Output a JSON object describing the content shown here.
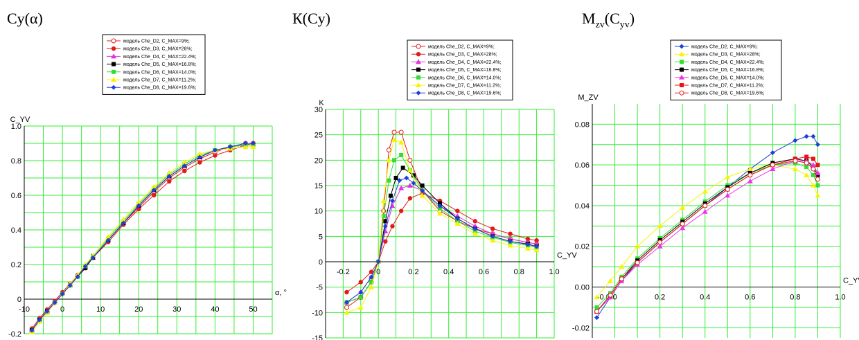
{
  "headings": {
    "chart1": "Cy(α)",
    "chart2": "К(Cy)",
    "chart3_main": "M",
    "chart3_sub1": "zv",
    "chart3_paren": "(C",
    "chart3_sub2": "yv",
    "chart3_close": ")"
  },
  "colors": {
    "grid": "#33ee33",
    "D2": "#e31a1c",
    "D3": "#e31a1c",
    "D4": "#dd33dd",
    "D5": "#000000",
    "D6": "#33dd33",
    "D7": "#f5f500",
    "D8": "#1f3fd6",
    "D2_plot3": "#1f3fd6",
    "D3_plot3": "#f5f500",
    "D4_plot3": "#33dd33",
    "D5_plot3": "#000000",
    "D6_plot3": "#ee33ee",
    "D7_plot3": "#ee1111",
    "D8_plot3": "#e31a1c"
  },
  "chart_data": [
    {
      "type": "line",
      "title": "Cy(α)",
      "ylabel": "C_YV",
      "xlabel": "α, °",
      "xlim": [
        -10,
        55
      ],
      "ylim": [
        -0.2,
        1.0
      ],
      "xticks": [
        "-10",
        "0",
        "10",
        "20",
        "30",
        "40",
        "50"
      ],
      "yticks": [
        "-0.2",
        "0",
        "0.2",
        "0.4",
        "0.6",
        "0.8",
        "1.0"
      ],
      "legend": [
        "модель Che_D2, C_MAX=9%;",
        "модель Che_D3, C_MAX=28%;",
        "модель Che_D4, C_MAX=22.4%;",
        "модель Che_D5, C_MAX=16.8%;",
        "модель Che_D6, C_MAX=14.0%;",
        "модель Che_D7, C_MAX=11.2%;",
        "модель Che_D8, C_MAX=19.6%;"
      ],
      "x": [
        -8,
        -6,
        -4,
        -2,
        0,
        2,
        4,
        6,
        8,
        12,
        16,
        20,
        24,
        28,
        32,
        36,
        40,
        44,
        48,
        50
      ],
      "series": [
        {
          "name": "D2",
          "values": [
            -0.18,
            -0.12,
            -0.07,
            -0.02,
            0.03,
            0.08,
            0.13,
            0.18,
            0.24,
            0.34,
            0.44,
            0.53,
            0.62,
            0.7,
            0.76,
            0.81,
            0.85,
            0.88,
            0.9,
            0.9
          ]
        },
        {
          "name": "D3",
          "values": [
            -0.17,
            -0.11,
            -0.06,
            -0.01,
            0.04,
            0.09,
            0.14,
            0.19,
            0.24,
            0.33,
            0.43,
            0.52,
            0.6,
            0.68,
            0.74,
            0.79,
            0.83,
            0.86,
            0.89,
            0.9
          ]
        },
        {
          "name": "D4",
          "values": [
            -0.18,
            -0.12,
            -0.07,
            -0.02,
            0.03,
            0.08,
            0.14,
            0.19,
            0.24,
            0.34,
            0.44,
            0.54,
            0.63,
            0.71,
            0.77,
            0.82,
            0.86,
            0.88,
            0.9,
            0.9
          ]
        },
        {
          "name": "D5",
          "values": [
            -0.18,
            -0.12,
            -0.07,
            -0.02,
            0.03,
            0.08,
            0.13,
            0.18,
            0.24,
            0.34,
            0.44,
            0.54,
            0.63,
            0.71,
            0.77,
            0.82,
            0.86,
            0.88,
            0.89,
            0.89
          ]
        },
        {
          "name": "D6",
          "values": [
            -0.19,
            -0.13,
            -0.08,
            -0.02,
            0.03,
            0.08,
            0.13,
            0.19,
            0.25,
            0.35,
            0.45,
            0.55,
            0.64,
            0.72,
            0.78,
            0.83,
            0.86,
            0.88,
            0.89,
            0.89
          ]
        },
        {
          "name": "D7",
          "values": [
            -0.19,
            -0.13,
            -0.08,
            -0.02,
            0.03,
            0.09,
            0.14,
            0.2,
            0.25,
            0.36,
            0.46,
            0.56,
            0.65,
            0.73,
            0.79,
            0.84,
            0.86,
            0.87,
            0.88,
            0.88
          ]
        },
        {
          "name": "D8",
          "values": [
            -0.18,
            -0.12,
            -0.07,
            -0.02,
            0.03,
            0.08,
            0.13,
            0.19,
            0.24,
            0.34,
            0.44,
            0.54,
            0.63,
            0.71,
            0.77,
            0.82,
            0.86,
            0.88,
            0.9,
            0.9
          ]
        }
      ]
    },
    {
      "type": "line",
      "title": "К(Cy)",
      "ylabel": "K",
      "xlabel": "C_YV",
      "xlim": [
        -0.3,
        1.0
      ],
      "ylim": [
        -15,
        30
      ],
      "xticks": [
        "-0.2",
        "0",
        "0.2",
        "0.4",
        "0.6",
        "0.8",
        "1.0"
      ],
      "yticks": [
        "-15",
        "-10",
        "-5",
        "0",
        "5",
        "10",
        "15",
        "20",
        "25",
        "30"
      ],
      "legend": [
        "модель Che_D2, C_MAX=9%;",
        "модель Che_D3, C_MAX=28%;",
        "модель Che_D4, C_MAX=22.4%;",
        "модель Che_D5, C_MAX=16.8%;",
        "модель Che_D6, C_MAX=14.0%;",
        "модель Che_D7, C_MAX=11.2%;",
        "модель Che_D8, C_MAX=19.6%;"
      ],
      "series": [
        {
          "name": "D2",
          "x": [
            -0.18,
            -0.1,
            -0.04,
            0.0,
            0.03,
            0.06,
            0.09,
            0.13,
            0.18,
            0.25,
            0.35,
            0.45,
            0.55,
            0.65,
            0.75,
            0.85,
            0.9
          ],
          "values": [
            -9,
            -7,
            -4,
            0,
            10,
            22,
            25.5,
            25.5,
            20,
            14,
            10,
            8,
            6.5,
            5.5,
            4.5,
            3.8,
            3.5
          ]
        },
        {
          "name": "D3",
          "x": [
            -0.18,
            -0.1,
            -0.04,
            0.0,
            0.04,
            0.08,
            0.13,
            0.18,
            0.25,
            0.35,
            0.45,
            0.55,
            0.65,
            0.75,
            0.85,
            0.9
          ],
          "values": [
            -6,
            -4,
            -2,
            0,
            4,
            7,
            10,
            12.5,
            13.5,
            12,
            10,
            8,
            6.5,
            5.5,
            4.5,
            4.2
          ]
        },
        {
          "name": "D4",
          "x": [
            -0.18,
            -0.1,
            -0.04,
            0.0,
            0.04,
            0.08,
            0.13,
            0.18,
            0.25,
            0.35,
            0.45,
            0.55,
            0.65,
            0.75,
            0.85,
            0.9
          ],
          "values": [
            -8,
            -6,
            -3,
            0,
            6,
            11,
            14.5,
            15,
            14,
            11,
            9,
            7,
            5.5,
            4.5,
            3.8,
            3.5
          ]
        },
        {
          "name": "D5",
          "x": [
            -0.18,
            -0.1,
            -0.04,
            0.0,
            0.04,
            0.07,
            0.1,
            0.14,
            0.2,
            0.25,
            0.35,
            0.45,
            0.55,
            0.65,
            0.75,
            0.85,
            0.9
          ],
          "values": [
            -8,
            -7,
            -4,
            0,
            8,
            13,
            16.5,
            18.5,
            17,
            15,
            11.5,
            8.5,
            6.5,
            5,
            4,
            3.5,
            3
          ]
        },
        {
          "name": "D6",
          "x": [
            -0.18,
            -0.1,
            -0.04,
            0.0,
            0.03,
            0.06,
            0.09,
            0.13,
            0.18,
            0.25,
            0.35,
            0.45,
            0.55,
            0.65,
            0.75,
            0.85,
            0.9
          ],
          "values": [
            -8,
            -7,
            -4,
            0,
            9,
            16,
            20,
            21,
            18,
            14,
            10.5,
            8,
            6,
            4.8,
            3.8,
            3.2,
            2.8
          ]
        },
        {
          "name": "D7",
          "x": [
            -0.18,
            -0.1,
            -0.04,
            0.0,
            0.03,
            0.06,
            0.09,
            0.13,
            0.18,
            0.25,
            0.35,
            0.45,
            0.55,
            0.65,
            0.75,
            0.85,
            0.9
          ],
          "values": [
            -10,
            -9,
            -5,
            0,
            12,
            20,
            24,
            23.5,
            18,
            13,
            9.5,
            7.5,
            5.5,
            4.2,
            3.2,
            2.6,
            2.3
          ]
        },
        {
          "name": "D8",
          "x": [
            -0.18,
            -0.1,
            -0.04,
            0.0,
            0.04,
            0.08,
            0.12,
            0.16,
            0.2,
            0.25,
            0.35,
            0.45,
            0.55,
            0.65,
            0.75,
            0.85,
            0.9
          ],
          "values": [
            -8,
            -6,
            -3,
            0,
            7,
            12,
            16,
            16.5,
            15.5,
            14,
            11,
            8.5,
            6.5,
            5,
            4,
            3.4,
            3
          ]
        }
      ]
    },
    {
      "type": "line",
      "title": "Mzv(Cyv)",
      "ylabel": "M_ZV",
      "xlabel": "C_YV",
      "xlim": [
        -0.1,
        1.0
      ],
      "ylim": [
        -0.025,
        0.09
      ],
      "xticks": [
        "-0.0",
        "0",
        "0.2",
        "0.4",
        "0.6",
        "0.8",
        "1.0"
      ],
      "yticks": [
        "-0.02",
        "0.00",
        "0.02",
        "0.04",
        "0.06",
        "0.08"
      ],
      "legend": [
        "модель Che_D2, C_MAX=9%;",
        "модель Che_D3, C_MAX=28%;",
        "модель Che_D4, C_MAX=22.4%;",
        "модель Che_D5, C_MAX=16.8%;",
        "модель Che_D6, C_MAX=14.0%;",
        "модель Che_D7, C_MAX=11.2%;",
        "модель Che_D8, C_MAX=19.6%;"
      ],
      "series": [
        {
          "name": "D2",
          "x": [
            -0.08,
            -0.02,
            0.03,
            0.1,
            0.2,
            0.3,
            0.4,
            0.5,
            0.6,
            0.7,
            0.8,
            0.85,
            0.88,
            0.9
          ],
          "values": [
            -0.015,
            -0.005,
            0.003,
            0.012,
            0.022,
            0.031,
            0.04,
            0.049,
            0.058,
            0.066,
            0.072,
            0.074,
            0.074,
            0.07
          ]
        },
        {
          "name": "D3",
          "x": [
            -0.08,
            -0.02,
            0.03,
            0.1,
            0.2,
            0.3,
            0.4,
            0.5,
            0.6,
            0.7,
            0.8,
            0.85,
            0.88,
            0.9
          ],
          "values": [
            -0.005,
            0.003,
            0.01,
            0.02,
            0.03,
            0.039,
            0.047,
            0.054,
            0.058,
            0.06,
            0.058,
            0.055,
            0.05,
            0.045
          ]
        },
        {
          "name": "D4",
          "x": [
            -0.08,
            -0.02,
            0.03,
            0.1,
            0.2,
            0.3,
            0.4,
            0.5,
            0.6,
            0.7,
            0.8,
            0.85,
            0.88,
            0.9
          ],
          "values": [
            -0.01,
            -0.003,
            0.005,
            0.014,
            0.024,
            0.033,
            0.042,
            0.05,
            0.056,
            0.06,
            0.061,
            0.059,
            0.055,
            0.05
          ]
        },
        {
          "name": "D5",
          "x": [
            -0.08,
            -0.02,
            0.03,
            0.1,
            0.2,
            0.3,
            0.4,
            0.5,
            0.6,
            0.7,
            0.8,
            0.85,
            0.88,
            0.9
          ],
          "values": [
            -0.012,
            -0.004,
            0.004,
            0.013,
            0.023,
            0.032,
            0.041,
            0.049,
            0.056,
            0.061,
            0.063,
            0.062,
            0.059,
            0.055
          ]
        },
        {
          "name": "D6",
          "x": [
            -0.08,
            -0.02,
            0.03,
            0.1,
            0.2,
            0.3,
            0.4,
            0.5,
            0.6,
            0.7,
            0.8,
            0.85,
            0.88,
            0.9
          ],
          "values": [
            -0.012,
            -0.005,
            0.003,
            0.011,
            0.02,
            0.029,
            0.037,
            0.045,
            0.052,
            0.058,
            0.062,
            0.062,
            0.06,
            0.056
          ]
        },
        {
          "name": "D7",
          "x": [
            -0.08,
            -0.02,
            0.03,
            0.1,
            0.2,
            0.3,
            0.4,
            0.5,
            0.6,
            0.7,
            0.8,
            0.85,
            0.88,
            0.9
          ],
          "values": [
            -0.012,
            -0.004,
            0.004,
            0.012,
            0.022,
            0.031,
            0.04,
            0.048,
            0.055,
            0.06,
            0.063,
            0.064,
            0.063,
            0.06
          ]
        },
        {
          "name": "D8",
          "x": [
            -0.08,
            -0.02,
            0.03,
            0.1,
            0.2,
            0.3,
            0.4,
            0.5,
            0.6,
            0.7,
            0.8,
            0.85,
            0.88,
            0.9
          ],
          "values": [
            -0.012,
            -0.004,
            0.004,
            0.012,
            0.022,
            0.031,
            0.04,
            0.048,
            0.055,
            0.06,
            0.062,
            0.061,
            0.058,
            0.053
          ]
        }
      ]
    }
  ]
}
